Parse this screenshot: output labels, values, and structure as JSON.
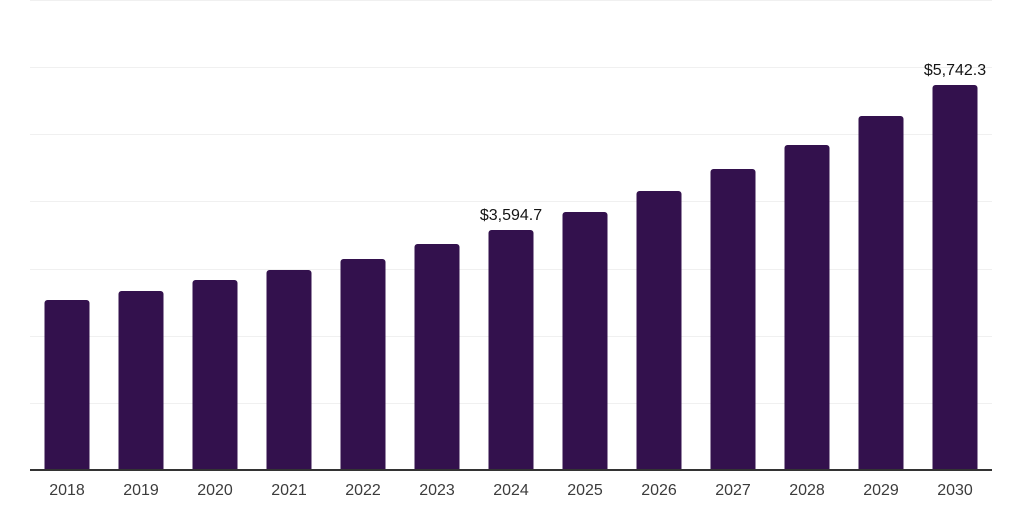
{
  "chart": {
    "background_color": "#ffffff",
    "bar_color": "#33114d",
    "gridline_color": "#f0f0f0",
    "axis_line_color": "#333333",
    "tick_label_color": "#3c3c3c",
    "data_label_color": "#141414"
  },
  "chart_data": {
    "type": "bar",
    "title": "",
    "xlabel": "",
    "ylabel": "",
    "categories": [
      "2018",
      "2019",
      "2020",
      "2021",
      "2022",
      "2023",
      "2024",
      "2025",
      "2026",
      "2027",
      "2028",
      "2029",
      "2030"
    ],
    "values": [
      2550,
      2685,
      2845,
      3000,
      3155,
      3375,
      3594.7,
      3860,
      4165,
      4505,
      4860,
      5290,
      5742.3
    ],
    "data_labels": [
      null,
      null,
      null,
      null,
      null,
      null,
      "$3,594.7",
      null,
      null,
      null,
      null,
      null,
      "$5,742.3"
    ],
    "ylim": [
      0,
      7000
    ],
    "gridline_interval": 1000,
    "grid": "horizontal",
    "legend_position": "none"
  }
}
